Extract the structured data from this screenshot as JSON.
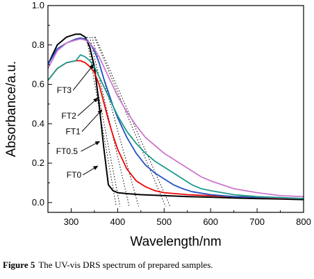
{
  "chart_data": {
    "type": "line",
    "xlabel": "Wavelength/nm",
    "ylabel": "Absorbance/a.u.",
    "xlim": [
      250,
      800
    ],
    "ylim": [
      -0.05,
      1.0
    ],
    "xticks": [
      300,
      400,
      500,
      600,
      700,
      800
    ],
    "yticks": [
      0.0,
      0.2,
      0.4,
      0.6,
      0.8,
      1.0
    ],
    "ytick_labels": [
      "0.0",
      "0.2",
      "0.4",
      "0.6",
      "0.8",
      "1.0"
    ],
    "grid": false,
    "series": [
      {
        "name": "FT0",
        "color": "#000000",
        "x": [
          250,
          270,
          290,
          310,
          320,
          330,
          340,
          350,
          360,
          370,
          380,
          390,
          400,
          420,
          450,
          500,
          550,
          600,
          650,
          700,
          750,
          800
        ],
        "y": [
          0.7,
          0.8,
          0.84,
          0.855,
          0.855,
          0.84,
          0.79,
          0.69,
          0.5,
          0.28,
          0.09,
          0.06,
          0.05,
          0.045,
          0.04,
          0.035,
          0.03,
          0.027,
          0.023,
          0.02,
          0.018,
          0.015
        ]
      },
      {
        "name": "FT0.5",
        "color": "#ee0000",
        "x": [
          250,
          270,
          290,
          310,
          320,
          330,
          340,
          350,
          360,
          370,
          380,
          390,
          400,
          420,
          440,
          460,
          480,
          500,
          550,
          600,
          650,
          700,
          750,
          800
        ],
        "y": [
          0.62,
          0.68,
          0.71,
          0.72,
          0.72,
          0.71,
          0.69,
          0.66,
          0.6,
          0.51,
          0.42,
          0.34,
          0.27,
          0.17,
          0.11,
          0.08,
          0.06,
          0.05,
          0.04,
          0.035,
          0.03,
          0.026,
          0.022,
          0.02
        ]
      },
      {
        "name": "FT1",
        "color": "#2050c0",
        "x": [
          250,
          270,
          290,
          310,
          320,
          330,
          340,
          350,
          360,
          370,
          380,
          390,
          400,
          420,
          440,
          460,
          480,
          500,
          520,
          540,
          560,
          600,
          650,
          700,
          750,
          800
        ],
        "y": [
          0.7,
          0.78,
          0.81,
          0.83,
          0.835,
          0.83,
          0.81,
          0.77,
          0.71,
          0.63,
          0.56,
          0.49,
          0.43,
          0.33,
          0.25,
          0.19,
          0.15,
          0.12,
          0.09,
          0.07,
          0.055,
          0.04,
          0.03,
          0.027,
          0.024,
          0.02
        ]
      },
      {
        "name": "FT2",
        "color": "#1a9a8a",
        "x": [
          250,
          270,
          290,
          310,
          320,
          325,
          330,
          340,
          350,
          360,
          370,
          380,
          390,
          400,
          420,
          440,
          460,
          480,
          500,
          520,
          540,
          560,
          580,
          600,
          650,
          700,
          750,
          800
        ],
        "y": [
          0.62,
          0.68,
          0.71,
          0.72,
          0.75,
          0.745,
          0.74,
          0.72,
          0.69,
          0.64,
          0.59,
          0.54,
          0.49,
          0.44,
          0.36,
          0.3,
          0.25,
          0.21,
          0.18,
          0.15,
          0.12,
          0.09,
          0.07,
          0.06,
          0.04,
          0.03,
          0.025,
          0.02
        ]
      },
      {
        "name": "FT3",
        "color": "#cc77cc",
        "x": [
          250,
          270,
          290,
          310,
          320,
          330,
          340,
          350,
          360,
          370,
          380,
          390,
          400,
          420,
          440,
          460,
          480,
          500,
          520,
          540,
          560,
          580,
          600,
          650,
          700,
          750,
          800
        ],
        "y": [
          0.68,
          0.77,
          0.81,
          0.825,
          0.83,
          0.825,
          0.81,
          0.78,
          0.74,
          0.69,
          0.64,
          0.59,
          0.54,
          0.46,
          0.39,
          0.33,
          0.29,
          0.25,
          0.22,
          0.19,
          0.16,
          0.13,
          0.11,
          0.07,
          0.05,
          0.035,
          0.03
        ]
      }
    ],
    "tangent_lines": [
      {
        "x": [
          333,
          397
        ],
        "y": [
          0.84,
          -0.02
        ]
      },
      {
        "x": [
          335,
          405
        ],
        "y": [
          0.84,
          -0.02
        ]
      },
      {
        "x": [
          340,
          425
        ],
        "y": [
          0.84,
          -0.02
        ]
      },
      {
        "x": [
          345,
          445
        ],
        "y": [
          0.84,
          -0.02
        ]
      },
      {
        "x": [
          350,
          503
        ],
        "y": [
          0.84,
          -0.02
        ]
      },
      {
        "x": [
          352,
          513
        ],
        "y": [
          0.84,
          -0.02
        ]
      }
    ],
    "annotations": [
      {
        "text": "FT3",
        "x": 285,
        "y": 0.57,
        "arrow_to": [
          348,
          0.7
        ]
      },
      {
        "text": "FT2",
        "x": 295,
        "y": 0.44,
        "arrow_to": [
          357,
          0.53
        ]
      },
      {
        "text": "FT1",
        "x": 304,
        "y": 0.36,
        "arrow_to": [
          366,
          0.47
        ]
      },
      {
        "text": "FT0.5",
        "x": 291,
        "y": 0.26,
        "arrow_to": [
          361,
          0.31
        ]
      },
      {
        "text": "FT0",
        "x": 306,
        "y": 0.14,
        "arrow_to": [
          357,
          0.185
        ]
      }
    ]
  },
  "caption": {
    "label": "Figure 5",
    "text": "The UV-vis DRS spectrum of prepared samples."
  }
}
